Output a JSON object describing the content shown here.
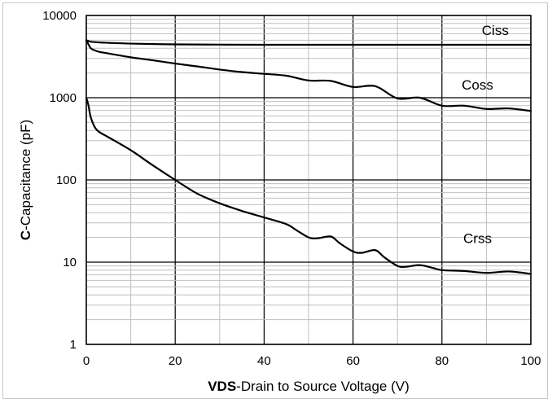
{
  "chart_data": {
    "type": "line",
    "title": "",
    "xlabel_bold": "VDS",
    "xlabel_rest": "-Drain to Source Voltage (V)",
    "ylabel_bold": "C",
    "ylabel_rest": "-Capacitance (pF)",
    "xlim": [
      0,
      100
    ],
    "ylim": [
      1,
      10000
    ],
    "yscale": "log",
    "grid": true,
    "x_ticks": [
      "0",
      "20",
      "40",
      "60",
      "80",
      "100"
    ],
    "y_ticks": [
      "1",
      "10",
      "100",
      "1000",
      "10000"
    ],
    "series": [
      {
        "name": "Ciss",
        "x": [
          0,
          1,
          3,
          5,
          10,
          20,
          30,
          40,
          50,
          60,
          70,
          80,
          90,
          100
        ],
        "y": [
          5000,
          4800,
          4700,
          4650,
          4550,
          4450,
          4420,
          4400,
          4400,
          4400,
          4400,
          4400,
          4400,
          4400
        ]
      },
      {
        "name": "Coss",
        "x": [
          0,
          1,
          2,
          3,
          5,
          10,
          15,
          20,
          25,
          30,
          35,
          40,
          45,
          50,
          55,
          60,
          65,
          70,
          75,
          80,
          85,
          90,
          95,
          100
        ],
        "y": [
          5000,
          4000,
          3750,
          3600,
          3450,
          3100,
          2850,
          2600,
          2400,
          2200,
          2050,
          1950,
          1850,
          1620,
          1600,
          1350,
          1380,
          980,
          1000,
          800,
          800,
          730,
          740,
          690
        ]
      },
      {
        "name": "Crss",
        "x": [
          0,
          0.5,
          1,
          2,
          3,
          5,
          10,
          15,
          20,
          25,
          30,
          35,
          40,
          45,
          47,
          50,
          52,
          55,
          57,
          60,
          62,
          65,
          67,
          70,
          72,
          75,
          78,
          80,
          85,
          90,
          95,
          100
        ],
        "y": [
          1000,
          800,
          580,
          430,
          380,
          330,
          230,
          150,
          100,
          68,
          52,
          42,
          35,
          29,
          25,
          20,
          19.5,
          20.5,
          17,
          13.5,
          13,
          14,
          11.5,
          9,
          8.8,
          9.2,
          8.5,
          8,
          7.8,
          7.4,
          7.7,
          7.2
        ]
      }
    ]
  }
}
